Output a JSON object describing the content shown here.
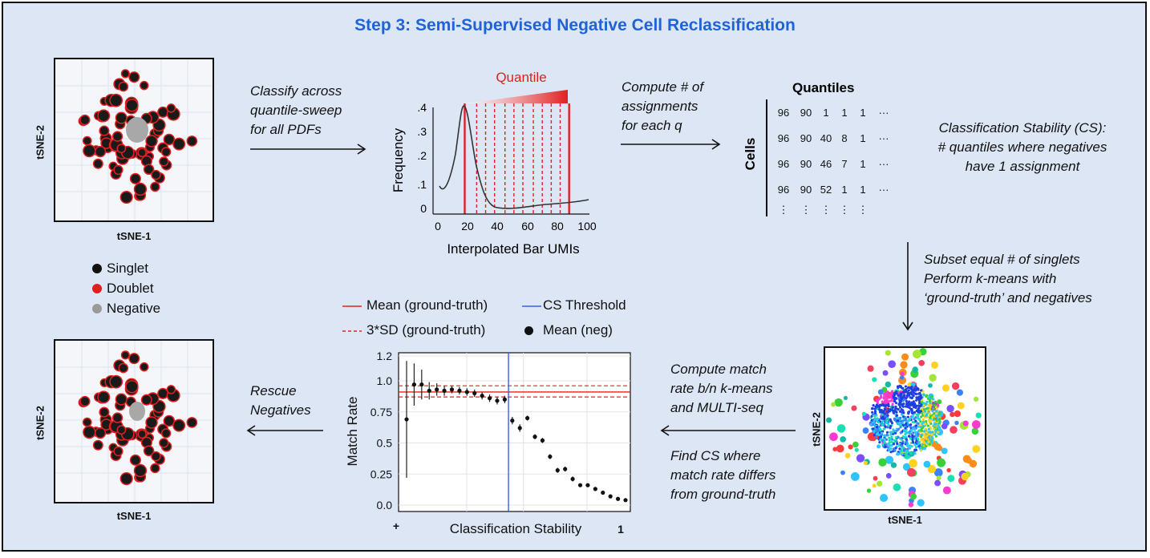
{
  "title": "Step 3: Semi-Supervised Negative Cell Reclassification",
  "tsne_top": {
    "xlabel": "tSNE-1",
    "ylabel": "tSNE-2"
  },
  "tsne_bottom": {
    "xlabel": "tSNE-1",
    "ylabel": "tSNE-2"
  },
  "tsne_kmeans": {
    "xlabel": "tSNE-1",
    "ylabel": "tSNE-2"
  },
  "legend": {
    "items": [
      {
        "label": "Singlet",
        "color": "#111111"
      },
      {
        "label": "Doublet",
        "color": "#e02020"
      },
      {
        "label": "Negative",
        "color": "#9a9a9a"
      }
    ]
  },
  "captions": {
    "classify": [
      "Classify across",
      "quantile-sweep",
      "for all PDFs"
    ],
    "compute_assign": [
      "Compute # of",
      "assignments",
      "for each q"
    ],
    "cs_def": [
      "Classification Stability (CS):",
      "# quantiles where negatives",
      "have 1 assignment"
    ],
    "subset": [
      "Subset equal # of singlets",
      "Perform k-means with",
      "‘ground-truth’ and negatives"
    ],
    "compute_match": [
      "Compute match",
      "rate b/n k-means",
      "and MULTI-seq"
    ],
    "find_cs": [
      "Find CS where",
      "match rate differs",
      "from ground-truth"
    ],
    "rescue": [
      "Rescue",
      "Negatives"
    ]
  },
  "freq_plot": {
    "quantile_label": "Quantile",
    "xlabel": "Interpolated Bar UMIs",
    "ylabel": "Frequency",
    "x_ticks": [
      "0",
      "20",
      "40",
      "60",
      "80",
      "100"
    ],
    "y_ticks": [
      ".4",
      ".3",
      ".2",
      ".1",
      "0"
    ],
    "quantile_lines_x": [
      18,
      26,
      32,
      38,
      45,
      51,
      57,
      64,
      70,
      76,
      82,
      88
    ]
  },
  "quantiles_table": {
    "title": "Quantiles",
    "row_label": "Cells",
    "rows": [
      [
        "96",
        "90",
        "1",
        "1",
        "1",
        "···"
      ],
      [
        "96",
        "90",
        "40",
        "8",
        "1",
        "···"
      ],
      [
        "96",
        "90",
        "46",
        "7",
        "1",
        "···"
      ],
      [
        "96",
        "90",
        "52",
        "1",
        "1",
        "···"
      ],
      [
        "⋮",
        "⋮",
        "⋮",
        "⋮",
        "⋮",
        ""
      ]
    ]
  },
  "chart_data": {
    "type": "scatter",
    "xlabel": "Classification Stability",
    "ylabel": "Match Rate",
    "x_tick_labels": [
      "+",
      "1"
    ],
    "ylim": [
      0,
      1.2
    ],
    "y_ticks": [
      "0.0",
      "0.25",
      "0.5",
      "0.75",
      "1.0",
      "1.2"
    ],
    "legend": [
      {
        "label": "Mean (ground-truth)",
        "style": "solid-red"
      },
      {
        "label": "CS Threshold",
        "style": "solid-blue"
      },
      {
        "label": "3*SD (ground-truth)",
        "style": "dashed-red"
      },
      {
        "label": "Mean (neg)",
        "style": "black-dot"
      }
    ],
    "ground_truth_mean": 0.91,
    "ground_truth_sd3": [
      0.87,
      0.96
    ],
    "cs_threshold_index": 14,
    "series": [
      {
        "name": "Mean (neg)",
        "values": [
          0.69,
          0.97,
          0.97,
          0.92,
          0.93,
          0.92,
          0.93,
          0.92,
          0.91,
          0.9,
          0.88,
          0.86,
          0.84,
          0.85,
          0.68,
          0.62,
          0.7,
          0.55,
          0.52,
          0.39,
          0.28,
          0.29,
          0.21,
          0.16,
          0.16,
          0.13,
          0.1,
          0.07,
          0.05,
          0.04
        ],
        "errors": [
          0.47,
          0.17,
          0.12,
          0.07,
          0.05,
          0.04,
          0.03,
          0.03,
          0.03,
          0.03,
          0.03,
          0.03,
          0.03,
          0.03,
          0.03,
          0.03,
          0.02,
          0.02,
          0.02,
          0.02,
          0.02,
          0.02,
          0.02,
          0.01,
          0.01,
          0.01,
          0.01,
          0.01,
          0.01,
          0.01
        ]
      }
    ]
  },
  "colors": {
    "background": "#dce6f5",
    "title": "#1f63d6",
    "red": "#e02020",
    "blue": "#3b5ee0"
  }
}
